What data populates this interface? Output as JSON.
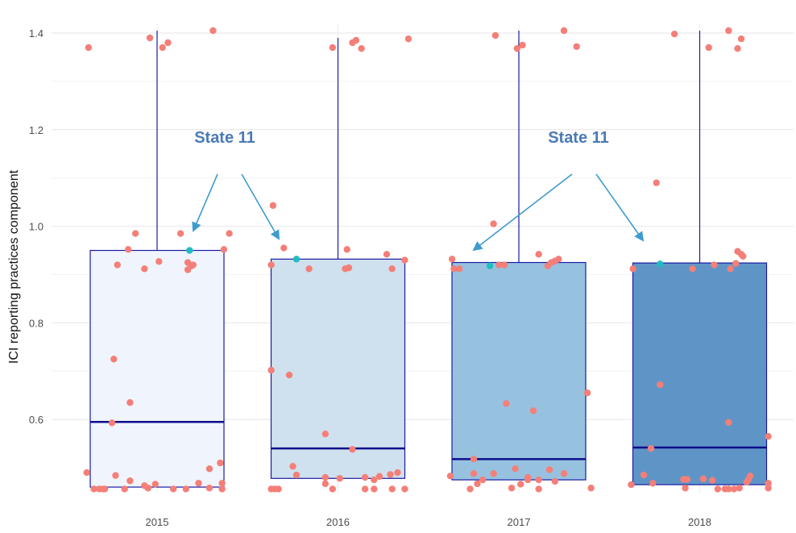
{
  "chart_data": {
    "type": "box",
    "title": "",
    "xlabel": "",
    "ylabel": "ICI reporting practices component",
    "ylim": [
      0.43,
      1.42
    ],
    "y_ticks": [
      "0.6",
      "0.8",
      "1.0",
      "1.2",
      "1.4"
    ],
    "categories": [
      "2015",
      "2016",
      "2017",
      "2018"
    ],
    "grid": true,
    "colors": {
      "box_fills": [
        "#f0f4fc",
        "#cfe0ee",
        "#96c2e0",
        "#5f95c6"
      ],
      "box_border": "#1a1aa6",
      "median": "#0d0d8c",
      "whisker": "#1a1aa6",
      "point": "#f47f78",
      "highlight_point": "#1ebdc2",
      "arrow": "#3d9bd0",
      "annotation_text": "#4a7ab5"
    },
    "boxes": [
      {
        "category": "2015",
        "whisker_low": 0.46,
        "q1": 0.46,
        "median": 0.595,
        "q3": 0.95,
        "whisker_high": 1.405
      },
      {
        "category": "2016",
        "whisker_low": 0.478,
        "q1": 0.478,
        "median": 0.54,
        "q3": 0.932,
        "whisker_high": 1.39
      },
      {
        "category": "2017",
        "whisker_low": 0.475,
        "q1": 0.475,
        "median": 0.518,
        "q3": 0.925,
        "whisker_high": 1.405
      },
      {
        "category": "2018",
        "whisker_low": 0.465,
        "q1": 0.465,
        "median": 0.542,
        "q3": 0.924,
        "whisker_high": 1.405
      }
    ],
    "points": [
      [
        [
          -0.38,
          1.37
        ],
        [
          -0.04,
          1.39
        ],
        [
          0.03,
          1.37
        ],
        [
          0.06,
          1.38
        ],
        [
          0.31,
          1.405
        ],
        [
          -0.12,
          0.985
        ],
        [
          0.13,
          0.985
        ],
        [
          0.4,
          0.985
        ],
        [
          0.37,
          0.952
        ],
        [
          -0.16,
          0.952
        ],
        [
          0.01,
          0.927
        ],
        [
          0.17,
          0.925
        ],
        [
          0.19,
          0.918
        ],
        [
          0.2,
          0.92
        ],
        [
          0.17,
          0.91
        ],
        [
          -0.22,
          0.92
        ],
        [
          -0.07,
          0.912
        ],
        [
          -0.24,
          0.725
        ],
        [
          -0.15,
          0.635
        ],
        [
          -0.25,
          0.593
        ],
        [
          -0.39,
          0.49
        ],
        [
          -0.23,
          0.484
        ],
        [
          0.29,
          0.498
        ],
        [
          0.35,
          0.51
        ],
        [
          -0.15,
          0.473
        ],
        [
          0.23,
          0.468
        ],
        [
          -0.01,
          0.466
        ],
        [
          0.36,
          0.468
        ],
        [
          -0.07,
          0.463
        ],
        [
          -0.35,
          0.456
        ],
        [
          -0.32,
          0.456
        ],
        [
          -0.3,
          0.456
        ],
        [
          -0.29,
          0.456
        ],
        [
          -0.18,
          0.456
        ],
        [
          -0.05,
          0.458
        ],
        [
          0.09,
          0.456
        ],
        [
          0.16,
          0.456
        ],
        [
          0.29,
          0.458
        ],
        [
          0.36,
          0.456
        ]
      ],
      [
        [
          -0.03,
          1.37
        ],
        [
          0.08,
          1.38
        ],
        [
          0.1,
          1.385
        ],
        [
          0.13,
          1.368
        ],
        [
          0.39,
          1.388
        ],
        [
          -0.36,
          1.043
        ],
        [
          -0.3,
          0.955
        ],
        [
          0.05,
          0.952
        ],
        [
          0.27,
          0.942
        ],
        [
          -0.37,
          0.92
        ],
        [
          -0.16,
          0.912
        ],
        [
          0.04,
          0.912
        ],
        [
          0.06,
          0.914
        ],
        [
          0.3,
          0.912
        ],
        [
          0.37,
          0.93
        ],
        [
          -0.37,
          0.702
        ],
        [
          -0.27,
          0.692
        ],
        [
          -0.07,
          0.57
        ],
        [
          0.08,
          0.538
        ],
        [
          -0.25,
          0.503
        ],
        [
          -0.23,
          0.485
        ],
        [
          -0.07,
          0.48
        ],
        [
          0.01,
          0.478
        ],
        [
          0.15,
          0.48
        ],
        [
          0.23,
          0.482
        ],
        [
          0.29,
          0.486
        ],
        [
          0.33,
          0.49
        ],
        [
          0.2,
          0.475
        ],
        [
          -0.37,
          0.456
        ],
        [
          -0.35,
          0.456
        ],
        [
          -0.33,
          0.456
        ],
        [
          -0.07,
          0.467
        ],
        [
          -0.03,
          0.456
        ],
        [
          0.15,
          0.456
        ],
        [
          0.2,
          0.456
        ],
        [
          0.3,
          0.456
        ],
        [
          0.37,
          0.456
        ]
      ],
      [
        [
          -0.13,
          1.395
        ],
        [
          -0.01,
          1.368
        ],
        [
          0.02,
          1.375
        ],
        [
          0.25,
          1.405
        ],
        [
          0.32,
          1.372
        ],
        [
          -0.14,
          1.005
        ],
        [
          -0.37,
          0.932
        ],
        [
          -0.36,
          0.912
        ],
        [
          -0.33,
          0.912
        ],
        [
          -0.08,
          0.92
        ],
        [
          -0.11,
          0.92
        ],
        [
          0.11,
          0.942
        ],
        [
          0.16,
          0.918
        ],
        [
          0.18,
          0.925
        ],
        [
          0.2,
          0.928
        ],
        [
          0.22,
          0.932
        ],
        [
          0.38,
          0.655
        ],
        [
          -0.07,
          0.633
        ],
        [
          0.08,
          0.618
        ],
        [
          -0.25,
          0.518
        ],
        [
          -0.25,
          0.488
        ],
        [
          -0.38,
          0.483
        ],
        [
          -0.14,
          0.488
        ],
        [
          -0.02,
          0.498
        ],
        [
          0.05,
          0.48
        ],
        [
          0.17,
          0.496
        ],
        [
          0.25,
          0.488
        ],
        [
          0.11,
          0.475
        ],
        [
          -0.2,
          0.475
        ],
        [
          0.05,
          0.475
        ],
        [
          -0.27,
          0.456
        ],
        [
          -0.23,
          0.467
        ],
        [
          -0.04,
          0.458
        ],
        [
          0.01,
          0.466
        ],
        [
          0.11,
          0.456
        ],
        [
          0.2,
          0.472
        ],
        [
          0.4,
          0.458
        ]
      ],
      [
        [
          -0.14,
          1.398
        ],
        [
          0.05,
          1.37
        ],
        [
          0.16,
          1.405
        ],
        [
          0.21,
          1.368
        ],
        [
          0.23,
          1.388
        ],
        [
          -0.24,
          1.09
        ],
        [
          -0.37,
          0.912
        ],
        [
          -0.04,
          0.912
        ],
        [
          0.08,
          0.92
        ],
        [
          0.17,
          0.912
        ],
        [
          0.2,
          0.923
        ],
        [
          0.21,
          0.948
        ],
        [
          0.23,
          0.942
        ],
        [
          0.24,
          0.938
        ],
        [
          -0.22,
          0.672
        ],
        [
          0.16,
          0.594
        ],
        [
          0.38,
          0.565
        ],
        [
          -0.27,
          0.54
        ],
        [
          -0.31,
          0.485
        ],
        [
          -0.26,
          0.468
        ],
        [
          -0.09,
          0.476
        ],
        [
          -0.07,
          0.476
        ],
        [
          0.02,
          0.477
        ],
        [
          0.07,
          0.474
        ],
        [
          -0.08,
          0.458
        ],
        [
          0.1,
          0.456
        ],
        [
          0.14,
          0.456
        ],
        [
          0.16,
          0.456
        ],
        [
          0.19,
          0.456
        ],
        [
          0.22,
          0.458
        ],
        [
          0.26,
          0.47
        ],
        [
          0.27,
          0.476
        ],
        [
          0.28,
          0.483
        ],
        [
          0.38,
          0.458
        ],
        [
          0.38,
          0.468
        ],
        [
          -0.38,
          0.465
        ]
      ]
    ],
    "highlight_points": [
      [
        0.18,
        0.95
      ],
      [
        -0.23,
        0.932
      ],
      [
        -0.16,
        0.918
      ],
      [
        -0.22,
        0.922
      ]
    ],
    "annotations": [
      {
        "text": "State 11",
        "targets": [
          0,
          1
        ]
      },
      {
        "text": "State 11",
        "targets": [
          2,
          3
        ]
      }
    ]
  }
}
